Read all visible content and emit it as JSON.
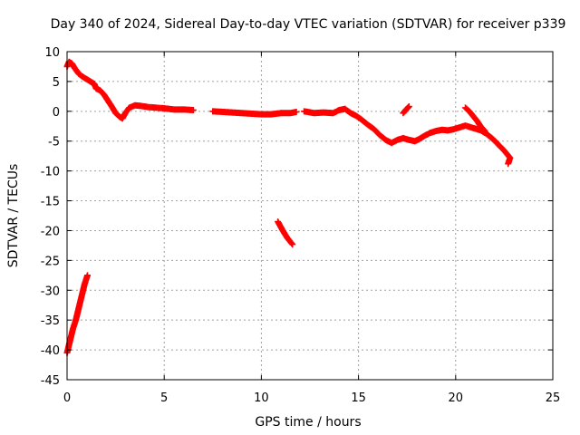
{
  "chart_data": {
    "type": "scatter",
    "title": "Day 340 of 2024, Sidereal Day-to-day VTEC variation (SDTVAR) for receiver p339",
    "xlabel": "GPS time / hours",
    "ylabel": "SDTVAR / TECUs",
    "xlim": [
      0,
      25
    ],
    "ylim": [
      -45,
      10
    ],
    "x_ticks": [
      0,
      5,
      10,
      15,
      20,
      25
    ],
    "y_ticks": [
      10,
      5,
      0,
      -5,
      -10,
      -15,
      -20,
      -25,
      -30,
      -35,
      -40,
      -45
    ],
    "grid": true,
    "marker": "plus",
    "series": [
      {
        "name": "SDTVAR",
        "color": "#ff0000",
        "segments": [
          [
            [
              0.0,
              -40.5
            ],
            [
              0.15,
              -38.5
            ],
            [
              0.3,
              -36.5
            ],
            [
              0.45,
              -35.0
            ],
            [
              0.6,
              -33.0
            ],
            [
              0.75,
              -31.0
            ],
            [
              0.9,
              -29.0
            ],
            [
              1.05,
              -27.5
            ]
          ],
          [
            [
              0.0,
              7.5
            ],
            [
              0.1,
              8.3
            ],
            [
              0.25,
              8.0
            ],
            [
              0.4,
              7.2
            ],
            [
              0.6,
              6.3
            ],
            [
              0.8,
              5.8
            ],
            [
              1.0,
              5.4
            ],
            [
              1.2,
              5.0
            ],
            [
              1.4,
              4.6
            ],
            [
              1.5,
              3.8
            ],
            [
              1.7,
              3.5
            ],
            [
              1.9,
              2.8
            ],
            [
              2.1,
              1.8
            ],
            [
              2.3,
              0.8
            ],
            [
              2.5,
              -0.3
            ],
            [
              2.7,
              -0.9
            ],
            [
              2.85,
              -1.2
            ],
            [
              3.0,
              -0.3
            ],
            [
              3.2,
              0.6
            ],
            [
              3.5,
              1.0
            ],
            [
              3.8,
              0.9
            ],
            [
              4.2,
              0.7
            ],
            [
              4.6,
              0.6
            ],
            [
              5.0,
              0.5
            ],
            [
              5.5,
              0.3
            ],
            [
              6.0,
              0.3
            ],
            [
              6.5,
              0.2
            ]
          ],
          [
            [
              7.5,
              0.0
            ],
            [
              8.0,
              -0.1
            ],
            [
              8.5,
              -0.2
            ],
            [
              9.0,
              -0.3
            ],
            [
              9.5,
              -0.4
            ],
            [
              10.0,
              -0.5
            ],
            [
              10.5,
              -0.5
            ],
            [
              11.0,
              -0.3
            ],
            [
              11.5,
              -0.3
            ],
            [
              11.8,
              -0.1
            ]
          ],
          [
            [
              10.85,
              -18.5
            ],
            [
              11.1,
              -20.0
            ],
            [
              11.35,
              -21.3
            ],
            [
              11.6,
              -22.3
            ]
          ],
          [
            [
              12.2,
              0.0
            ],
            [
              12.7,
              -0.3
            ],
            [
              13.2,
              -0.2
            ],
            [
              13.7,
              -0.3
            ],
            [
              14.0,
              0.2
            ],
            [
              14.3,
              0.4
            ],
            [
              14.6,
              -0.3
            ],
            [
              14.9,
              -0.8
            ],
            [
              15.2,
              -1.5
            ],
            [
              15.5,
              -2.3
            ],
            [
              15.8,
              -3.0
            ],
            [
              16.1,
              -4.0
            ],
            [
              16.4,
              -4.8
            ],
            [
              16.7,
              -5.3
            ],
            [
              17.0,
              -4.8
            ],
            [
              17.3,
              -4.5
            ],
            [
              17.6,
              -4.8
            ],
            [
              17.9,
              -5.0
            ],
            [
              18.1,
              -4.7
            ],
            [
              18.4,
              -4.1
            ],
            [
              18.7,
              -3.6
            ],
            [
              19.0,
              -3.3
            ],
            [
              19.3,
              -3.1
            ],
            [
              19.6,
              -3.2
            ],
            [
              19.9,
              -3.0
            ],
            [
              20.2,
              -2.7
            ],
            [
              20.5,
              -2.4
            ],
            [
              20.7,
              -2.6
            ],
            [
              21.0,
              -2.9
            ],
            [
              21.3,
              -3.2
            ],
            [
              21.6,
              -3.8
            ],
            [
              21.9,
              -4.6
            ],
            [
              22.2,
              -5.6
            ],
            [
              22.5,
              -6.6
            ],
            [
              22.8,
              -7.8
            ],
            [
              22.7,
              -8.8
            ]
          ],
          [
            [
              20.5,
              0.6
            ],
            [
              20.7,
              0.0
            ],
            [
              20.9,
              -0.8
            ],
            [
              21.1,
              -1.6
            ],
            [
              21.3,
              -2.6
            ],
            [
              21.5,
              -3.3
            ]
          ],
          [
            [
              17.3,
              -0.3
            ],
            [
              17.45,
              0.3
            ],
            [
              17.6,
              0.8
            ]
          ]
        ]
      }
    ]
  }
}
